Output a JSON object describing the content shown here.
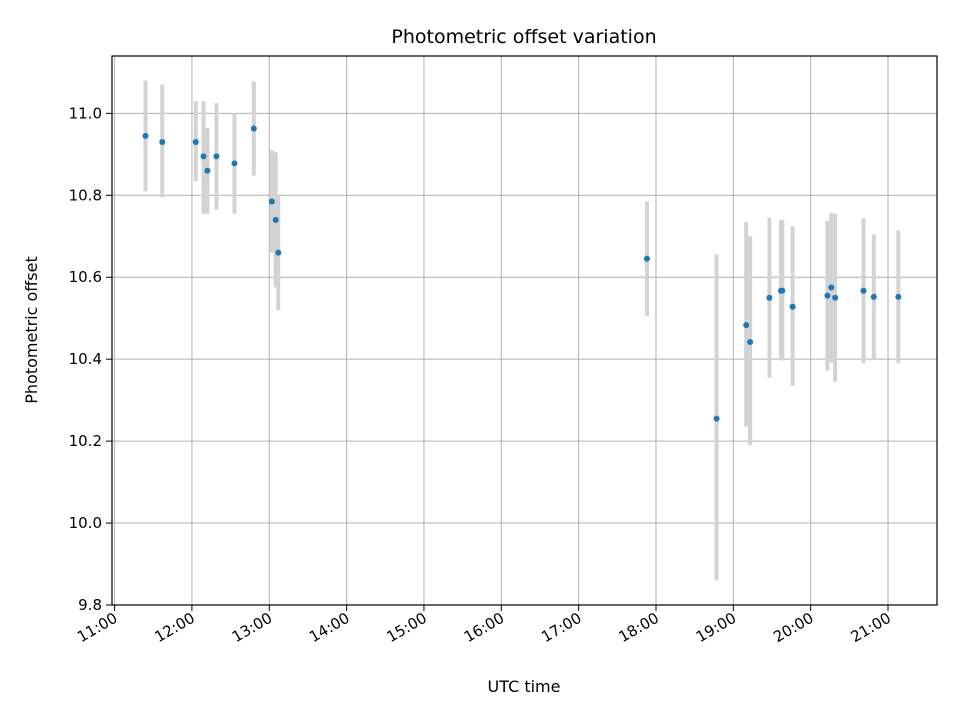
{
  "chart_data": {
    "type": "scatter",
    "title": "Photometric offset variation",
    "xlabel": "UTC time",
    "ylabel": "Photometric offset",
    "x_axis_type": "time",
    "xlim": [
      "10:58",
      "21:38"
    ],
    "ylim": [
      9.8,
      11.14
    ],
    "grid": true,
    "x_tick_labels": [
      "11:00",
      "12:00",
      "13:00",
      "14:00",
      "15:00",
      "16:00",
      "17:00",
      "18:00",
      "19:00",
      "20:00",
      "21:00"
    ],
    "y_tick_labels": [
      "9.8",
      "10.0",
      "10.2",
      "10.4",
      "10.6",
      "10.8",
      "11.0"
    ],
    "marker_color": "#1f77b4",
    "errorbar_color": "#d3d3d3",
    "points": [
      {
        "time": "11:24",
        "y": 10.945,
        "ylow": 10.81,
        "yhigh": 11.08
      },
      {
        "time": "11:37",
        "y": 10.93,
        "ylow": 10.795,
        "yhigh": 11.07
      },
      {
        "time": "12:03",
        "y": 10.93,
        "ylow": 10.835,
        "yhigh": 11.03
      },
      {
        "time": "12:09",
        "y": 10.895,
        "ylow": 10.755,
        "yhigh": 11.03
      },
      {
        "time": "12:12",
        "y": 10.86,
        "ylow": 10.755,
        "yhigh": 10.965
      },
      {
        "time": "12:19",
        "y": 10.895,
        "ylow": 10.765,
        "yhigh": 11.025
      },
      {
        "time": "12:33",
        "y": 10.878,
        "ylow": 10.755,
        "yhigh": 11.0
      },
      {
        "time": "12:48",
        "y": 10.963,
        "ylow": 10.848,
        "yhigh": 11.078
      },
      {
        "time": "13:02",
        "y": 10.785,
        "ylow": 10.66,
        "yhigh": 10.91
      },
      {
        "time": "13:05",
        "y": 10.74,
        "ylow": 10.575,
        "yhigh": 10.905
      },
      {
        "time": "13:07",
        "y": 10.66,
        "ylow": 10.52,
        "yhigh": 10.8
      },
      {
        "time": "17:53",
        "y": 10.645,
        "ylow": 10.505,
        "yhigh": 10.785
      },
      {
        "time": "18:47",
        "y": 10.255,
        "ylow": 9.86,
        "yhigh": 10.655
      },
      {
        "time": "19:10",
        "y": 10.483,
        "ylow": 10.235,
        "yhigh": 10.735
      },
      {
        "time": "19:13",
        "y": 10.442,
        "ylow": 10.19,
        "yhigh": 10.7
      },
      {
        "time": "19:28",
        "y": 10.55,
        "ylow": 10.355,
        "yhigh": 10.745
      },
      {
        "time": "19:37",
        "y": 10.567,
        "ylow": 10.397,
        "yhigh": 10.74
      },
      {
        "time": "19:38",
        "y": 10.567,
        "ylow": 10.397,
        "yhigh": 10.74
      },
      {
        "time": "19:46",
        "y": 10.528,
        "ylow": 10.335,
        "yhigh": 10.724
      },
      {
        "time": "20:13",
        "y": 10.555,
        "ylow": 10.372,
        "yhigh": 10.738
      },
      {
        "time": "20:16",
        "y": 10.575,
        "ylow": 10.392,
        "yhigh": 10.757
      },
      {
        "time": "20:19",
        "y": 10.55,
        "ylow": 10.345,
        "yhigh": 10.755
      },
      {
        "time": "20:41",
        "y": 10.567,
        "ylow": 10.39,
        "yhigh": 10.744
      },
      {
        "time": "20:49",
        "y": 10.552,
        "ylow": 10.4,
        "yhigh": 10.704
      },
      {
        "time": "21:08",
        "y": 10.552,
        "ylow": 10.39,
        "yhigh": 10.714
      }
    ]
  }
}
